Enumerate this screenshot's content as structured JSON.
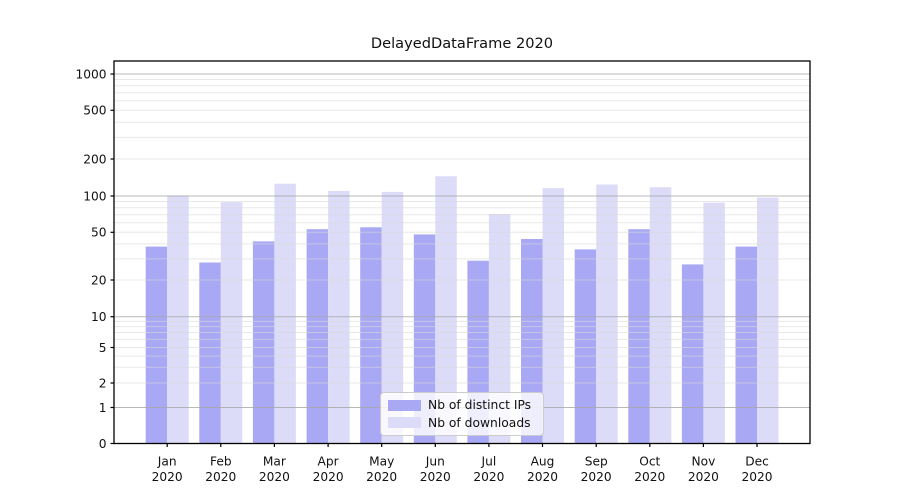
{
  "page_title": "DelayedDataFrame 2020",
  "chart_data": {
    "type": "bar",
    "title": "DelayedDataFrame 2020",
    "grid": true,
    "x_axis": {
      "categories": [
        "Jan",
        "Feb",
        "Mar",
        "Apr",
        "May",
        "Jun",
        "Jul",
        "Aug",
        "Sep",
        "Oct",
        "Nov",
        "Dec"
      ],
      "year": "2020"
    },
    "y_axis": {
      "scale": "symlog",
      "ticks": [
        0,
        1,
        2,
        5,
        10,
        20,
        50,
        100,
        200,
        500,
        1000
      ],
      "ylim": [
        0,
        1250
      ],
      "major_gridlines": [
        1,
        10,
        100,
        1000
      ]
    },
    "series": [
      {
        "name": "Nb of distinct IPs",
        "color": "#a8a8f5",
        "values": [
          38,
          28,
          42,
          53,
          55,
          48,
          29,
          44,
          36,
          53,
          27,
          38
        ]
      },
      {
        "name": "Nb of downloads",
        "color": "#dcdcf8",
        "values": [
          101,
          89,
          126,
          110,
          108,
          145,
          71,
          116,
          124,
          118,
          88,
          97
        ]
      }
    ],
    "legend": {
      "position": "lower center"
    }
  }
}
